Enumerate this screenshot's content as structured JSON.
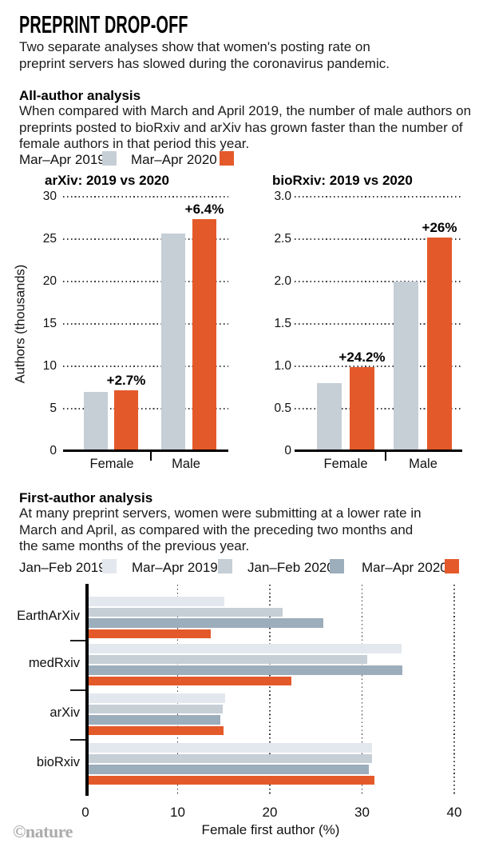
{
  "header": {
    "title": "PREPRINT DROP-OFF",
    "subtitle_lines": [
      "Two separate analyses show that women's posting rate on",
      "preprint servers has slowed during the coronavirus pandemic."
    ]
  },
  "all_author": {
    "heading": "All-author analysis",
    "body_lines": [
      "When compared with March and April 2019, the number of male authors on",
      "preprints posted to bioRxiv and arXiv has grown faster than the number of",
      "female authors in that period this year."
    ],
    "legend": [
      {
        "label": "Mar–Apr 2019",
        "color": "#c6ced6"
      },
      {
        "label": "Mar–Apr 2020",
        "color": "#e4592a"
      }
    ]
  },
  "first_author": {
    "heading": "First-author analysis",
    "body_lines": [
      "At many preprint servers, women were submitting at a lower rate in",
      "March and April, as compared with the preceding two months and",
      "the same months of the previous year."
    ],
    "legend": [
      {
        "label": "Jan–Feb 2019",
        "color": "#e3e8ee"
      },
      {
        "label": "Mar–Apr 2019",
        "color": "#c6ced6"
      },
      {
        "label": "Jan–Feb 2020",
        "color": "#9cadbb"
      },
      {
        "label": "Mar–Apr 2020",
        "color": "#e4592a"
      }
    ]
  },
  "chart_data": [
    {
      "type": "bar",
      "title": "arXiv: 2019 vs 2020",
      "ylabel": "Authors (thousands)",
      "ylim": [
        0,
        30
      ],
      "yticks": [
        0,
        5,
        10,
        15,
        20,
        25,
        30
      ],
      "ytick_labels": [
        "0",
        "5",
        "10",
        "15",
        "20",
        "25",
        "30"
      ],
      "grid": "dotted-horizontal",
      "categories": [
        "Female",
        "Male"
      ],
      "series": [
        {
          "name": "Mar–Apr 2019",
          "color": "#c6ced6",
          "values": [
            7.0,
            25.7
          ]
        },
        {
          "name": "Mar–Apr 2020",
          "color": "#e4592a",
          "values": [
            7.2,
            27.4
          ]
        }
      ],
      "annotations": [
        {
          "category": "Female",
          "text": "+2.7%"
        },
        {
          "category": "Male",
          "text": "+6.4%"
        }
      ]
    },
    {
      "type": "bar",
      "title": "bioRxiv: 2019 vs 2020",
      "ylabel": "",
      "ylim": [
        0,
        3.0
      ],
      "yticks": [
        0,
        0.5,
        1.0,
        1.5,
        2.0,
        2.5,
        3.0
      ],
      "ytick_labels": [
        "0",
        "0.5",
        "1.0",
        "1.5",
        "2.0",
        "2.5",
        "3.0"
      ],
      "grid": "dotted-horizontal",
      "categories": [
        "Female",
        "Male"
      ],
      "series": [
        {
          "name": "Mar–Apr 2019",
          "color": "#c6ced6",
          "values": [
            0.8,
            2.0
          ]
        },
        {
          "name": "Mar–Apr 2020",
          "color": "#e4592a",
          "values": [
            0.99,
            2.52
          ]
        }
      ],
      "annotations": [
        {
          "category": "Female",
          "text": "+24.2%"
        },
        {
          "category": "Male",
          "text": "+26%"
        }
      ]
    },
    {
      "type": "bar-horizontal",
      "xlabel": "Female first author (%)",
      "xlim": [
        0,
        40
      ],
      "xticks": [
        0,
        10,
        20,
        30,
        40
      ],
      "xtick_labels": [
        "0",
        "10",
        "20",
        "30",
        "40"
      ],
      "grid": "dotted-vertical",
      "categories": [
        "EarthArXiv",
        "medRxiv",
        "arXiv",
        "bioRxiv"
      ],
      "series": [
        {
          "name": "Jan–Feb 2019",
          "color": "#e3e8ee",
          "values": [
            14.8,
            34.0,
            14.9,
            30.8
          ]
        },
        {
          "name": "Mar–Apr 2019",
          "color": "#c6ced6",
          "values": [
            21.1,
            30.3,
            14.6,
            30.8
          ]
        },
        {
          "name": "Jan–Feb 2020",
          "color": "#9cadbb",
          "values": [
            25.5,
            34.1,
            14.4,
            30.5
          ]
        },
        {
          "name": "Mar–Apr 2020",
          "color": "#e4592a",
          "values": [
            13.3,
            22.1,
            14.7,
            31.1
          ]
        }
      ]
    }
  ],
  "footer": {
    "wordmark": "©nature"
  }
}
